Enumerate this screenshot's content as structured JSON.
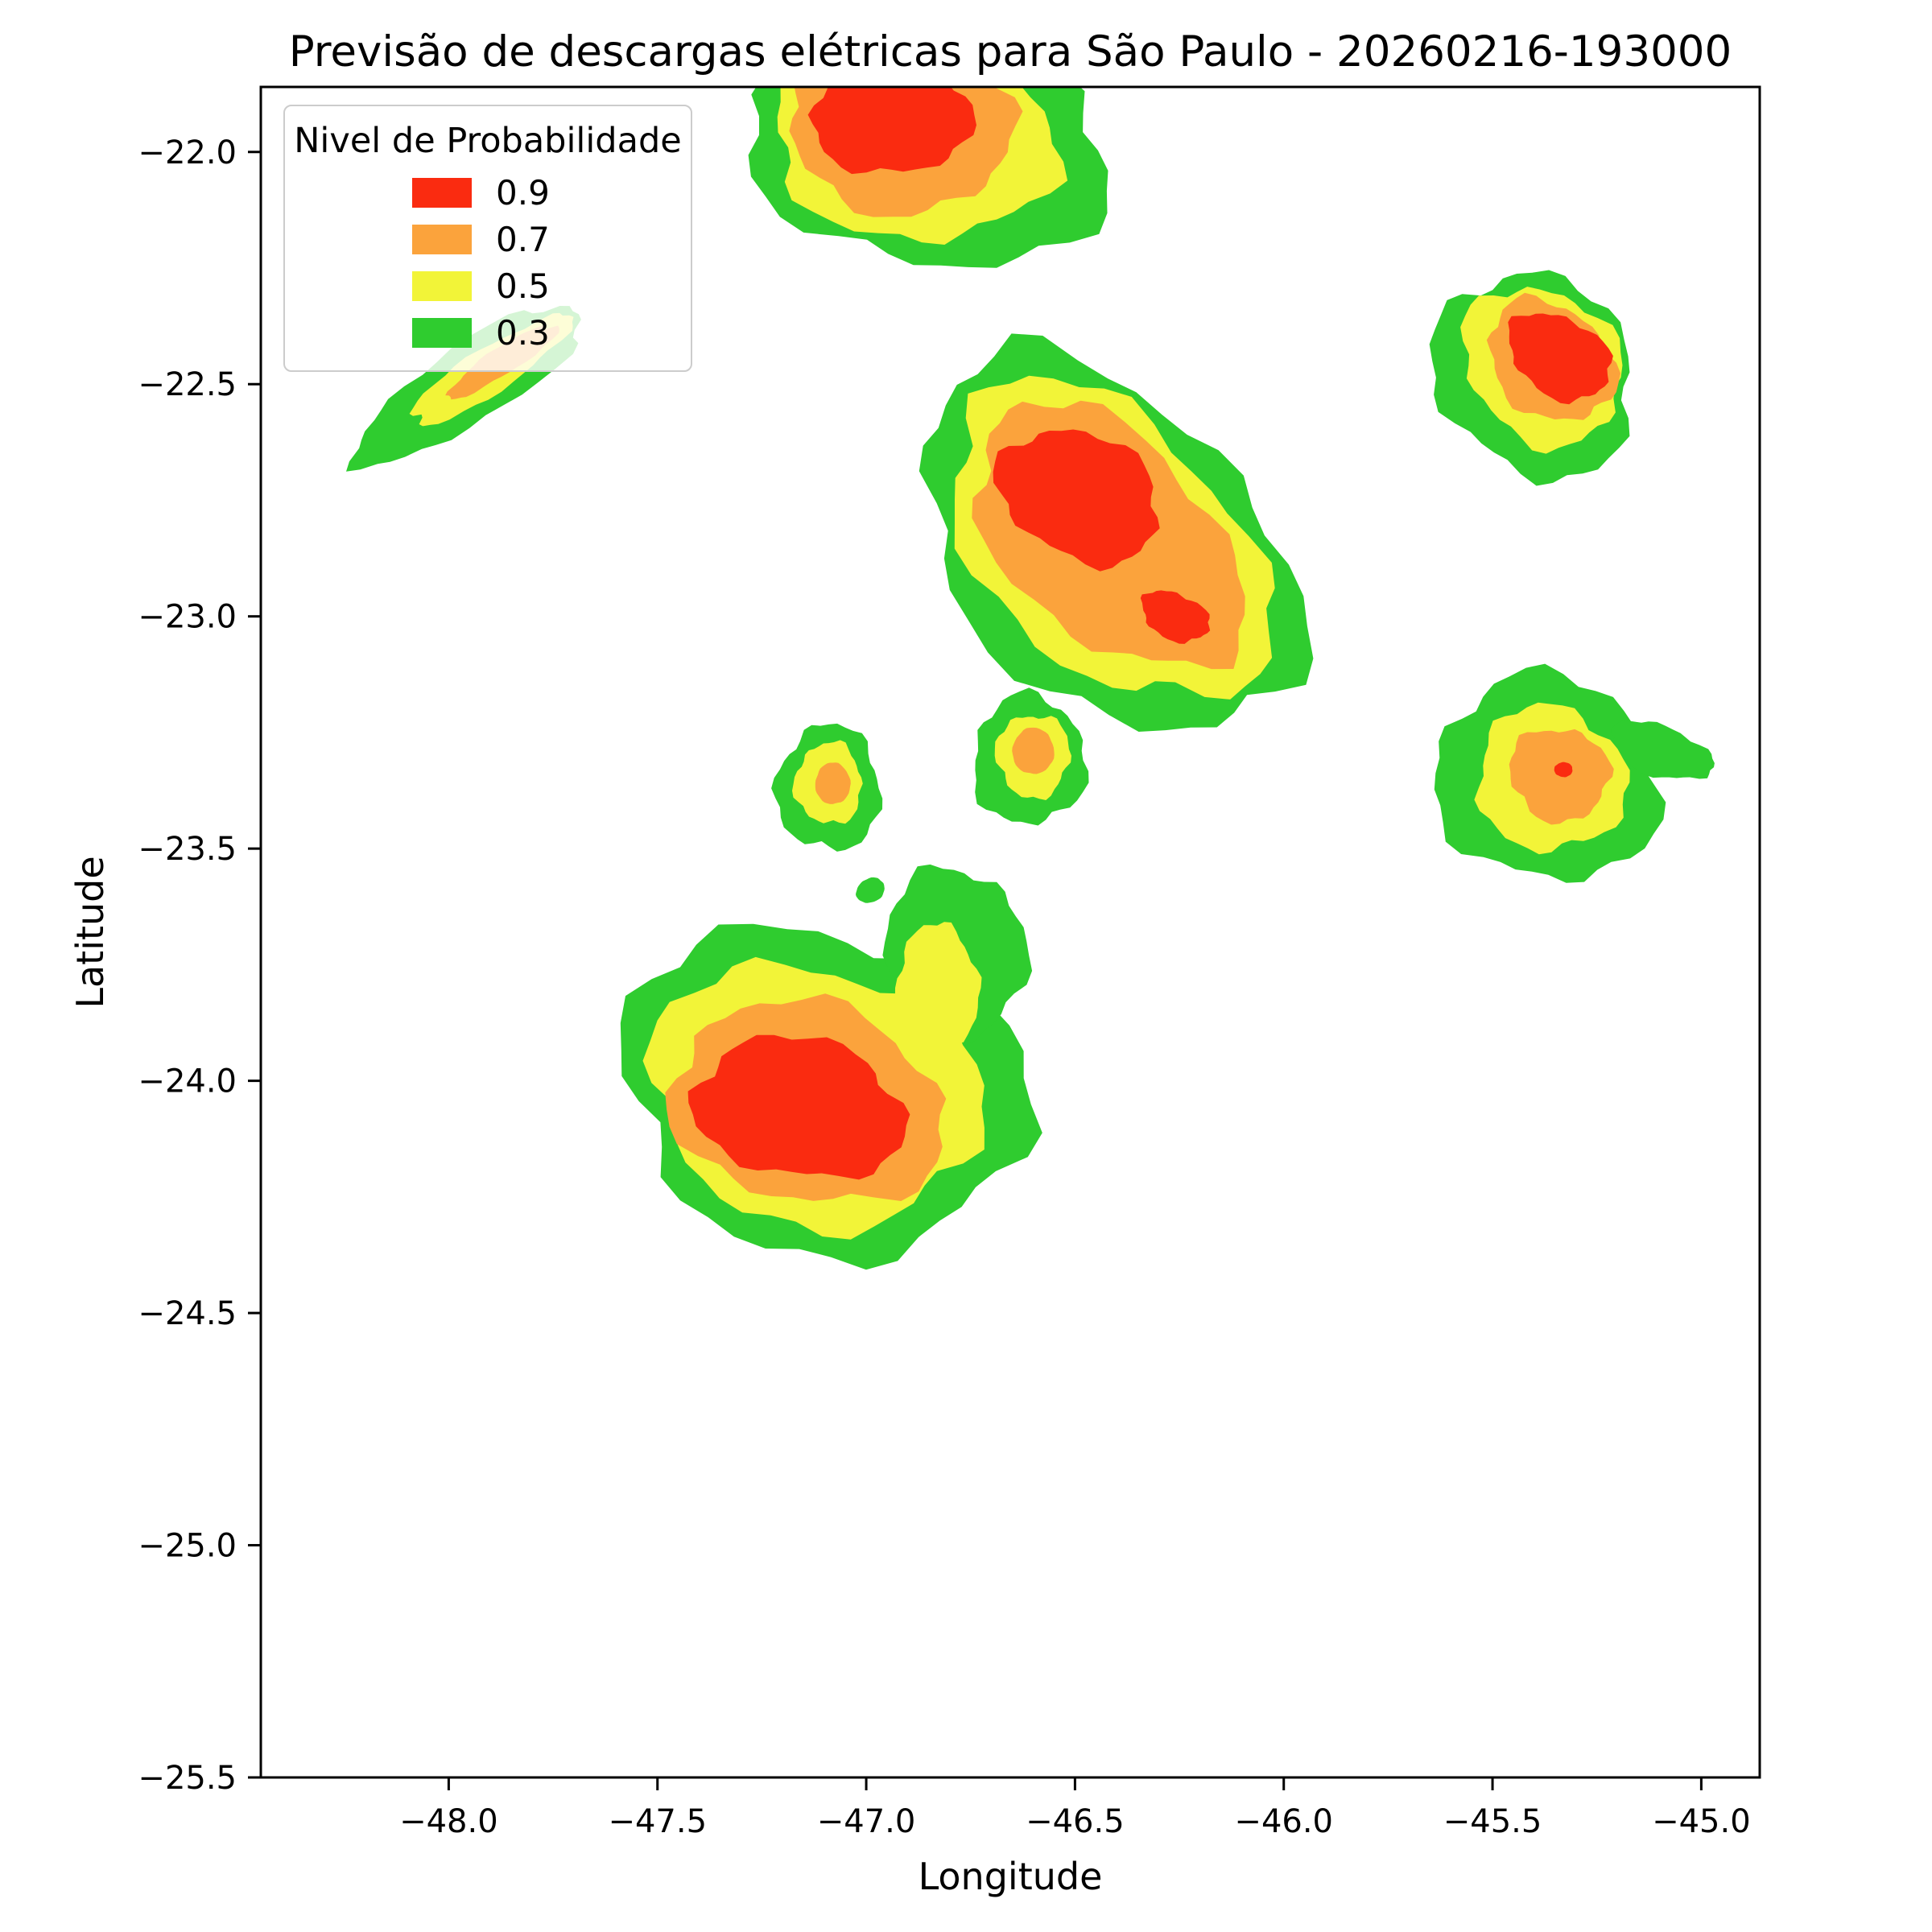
{
  "figure": {
    "title": "Previsão de descargas elétricas para São Paulo - 20260216-193000",
    "xlabel": "Longitude",
    "ylabel": "Latitude"
  },
  "legend": {
    "title": "Nivel de Probabilidade",
    "entries": [
      {
        "label": "0.9",
        "color": "#fa2b10"
      },
      {
        "label": "0.7",
        "color": "#fba33c"
      },
      {
        "label": "0.5",
        "color": "#f2f438"
      },
      {
        "label": "0.3",
        "color": "#2fcc2f"
      }
    ]
  },
  "chart_data": {
    "type": "heatmap",
    "subtype": "filled-contour-probability-map",
    "title": "Previsão de descargas elétricas para São Paulo - 20260216-193000",
    "xlabel": "Longitude",
    "ylabel": "Latitude",
    "xlim": [
      -48.45,
      -44.86
    ],
    "ylim": [
      -25.5,
      -21.86
    ],
    "grid": false,
    "legend_position": "upper left",
    "xticks": [
      -48.0,
      -47.5,
      -47.0,
      -46.5,
      -46.0,
      -45.5,
      -45.0
    ],
    "xtick_labels": [
      "−48.0",
      "−47.5",
      "−47.0",
      "−46.5",
      "−46.0",
      "−45.5",
      "−45.0"
    ],
    "yticks": [
      -22.0,
      -22.5,
      -23.0,
      -23.5,
      -24.0,
      -24.5,
      -25.0,
      -25.5
    ],
    "ytick_labels": [
      "−22.0",
      "−22.5",
      "−23.0",
      "−23.5",
      "−24.0",
      "−24.5",
      "−25.0",
      "−25.5"
    ],
    "levels": [
      {
        "value": 0.9,
        "color": "#fa2b10"
      },
      {
        "value": 0.7,
        "color": "#fba33c"
      },
      {
        "value": 0.5,
        "color": "#f2f438"
      },
      {
        "value": 0.3,
        "color": "#2fcc2f"
      }
    ],
    "blobs": [
      {
        "name": "north-cell",
        "rings": [
          {
            "level": 0.3,
            "cx": -46.85,
            "cy": -21.98,
            "rx": 0.43,
            "ry": 0.27,
            "angle": -8
          },
          {
            "level": 0.5,
            "cx": -46.89,
            "cy": -21.97,
            "rx": 0.34,
            "ry": 0.22,
            "angle": -8
          },
          {
            "level": 0.7,
            "cx": -46.92,
            "cy": -21.95,
            "rx": 0.27,
            "ry": 0.18,
            "angle": -5
          },
          {
            "level": 0.9,
            "cx": -46.94,
            "cy": -21.92,
            "rx": 0.19,
            "ry": 0.13,
            "angle": 0
          }
        ]
      },
      {
        "name": "northwest-streak",
        "rings": [
          {
            "level": 0.3,
            "cx": -47.95,
            "cy": -22.5,
            "rx": 0.31,
            "ry": 0.085,
            "angle": 30
          },
          {
            "level": 0.5,
            "cx": -47.9,
            "cy": -22.47,
            "rx": 0.22,
            "ry": 0.05,
            "angle": 30
          },
          {
            "level": 0.7,
            "cx": -47.87,
            "cy": -22.45,
            "rx": 0.15,
            "ry": 0.03,
            "angle": 30
          }
        ]
      },
      {
        "name": "central-cluster",
        "rings": [
          {
            "level": 0.3,
            "cx": -46.42,
            "cy": -22.85,
            "rx": 0.51,
            "ry": 0.33,
            "angle": -38
          },
          {
            "level": 0.5,
            "cx": -46.42,
            "cy": -22.84,
            "rx": 0.44,
            "ry": 0.27,
            "angle": -38
          },
          {
            "level": 0.7,
            "cx": -46.42,
            "cy": -22.83,
            "rx": 0.37,
            "ry": 0.22,
            "angle": -38
          },
          {
            "level": 0.9,
            "cx": -46.49,
            "cy": -22.74,
            "rx": 0.2,
            "ry": 0.135,
            "angle": -20
          },
          {
            "level": 0.9,
            "cx": -46.26,
            "cy": -23.0,
            "rx": 0.085,
            "ry": 0.05,
            "angle": -20
          }
        ]
      },
      {
        "name": "northeast-cell",
        "rings": [
          {
            "level": 0.3,
            "cx": -45.4,
            "cy": -22.48,
            "rx": 0.25,
            "ry": 0.21,
            "angle": -30
          },
          {
            "level": 0.5,
            "cx": -45.38,
            "cy": -22.46,
            "rx": 0.2,
            "ry": 0.16,
            "angle": -30
          },
          {
            "level": 0.7,
            "cx": -45.36,
            "cy": -22.45,
            "rx": 0.16,
            "ry": 0.12,
            "angle": -30
          },
          {
            "level": 0.9,
            "cx": -45.34,
            "cy": -22.44,
            "rx": 0.13,
            "ry": 0.085,
            "angle": -25
          }
        ]
      },
      {
        "name": "small-cell-west",
        "rings": [
          {
            "level": 0.3,
            "cx": -47.09,
            "cy": -23.37,
            "rx": 0.125,
            "ry": 0.135,
            "angle": 0
          },
          {
            "level": 0.5,
            "cx": -47.09,
            "cy": -23.36,
            "rx": 0.08,
            "ry": 0.088,
            "angle": 0
          },
          {
            "level": 0.7,
            "cx": -47.08,
            "cy": -23.36,
            "rx": 0.042,
            "ry": 0.045,
            "angle": 0
          }
        ]
      },
      {
        "name": "small-cell-center",
        "rings": [
          {
            "level": 0.3,
            "cx": -46.61,
            "cy": -23.31,
            "rx": 0.135,
            "ry": 0.14,
            "angle": 0
          },
          {
            "level": 0.5,
            "cx": -46.6,
            "cy": -23.3,
            "rx": 0.088,
            "ry": 0.09,
            "angle": 0
          },
          {
            "level": 0.7,
            "cx": -46.6,
            "cy": -23.29,
            "rx": 0.05,
            "ry": 0.05,
            "angle": 0
          }
        ]
      },
      {
        "name": "east-cell",
        "rings": [
          {
            "level": 0.3,
            "cx": -45.37,
            "cy": -23.35,
            "rx": 0.27,
            "ry": 0.22,
            "angle": -10
          },
          {
            "level": 0.3,
            "cx": -45.1,
            "cy": -23.29,
            "rx": 0.13,
            "ry": 0.055,
            "angle": -15
          },
          {
            "level": 0.5,
            "cx": -45.36,
            "cy": -23.35,
            "rx": 0.18,
            "ry": 0.155,
            "angle": -10
          },
          {
            "level": 0.7,
            "cx": -45.34,
            "cy": -23.34,
            "rx": 0.12,
            "ry": 0.1,
            "angle": -10
          },
          {
            "level": 0.9,
            "cx": -45.33,
            "cy": -23.33,
            "rx": 0.022,
            "ry": 0.016,
            "angle": 0
          }
        ]
      },
      {
        "name": "southwest-cluster",
        "rings": [
          {
            "level": 0.3,
            "cx": -47.1,
            "cy": -24.02,
            "rx": 0.49,
            "ry": 0.35,
            "angle": -10
          },
          {
            "level": 0.3,
            "cx": -46.79,
            "cy": -23.73,
            "rx": 0.17,
            "ry": 0.19,
            "angle": 0
          },
          {
            "level": 0.3,
            "cx": -46.99,
            "cy": -23.59,
            "rx": 0.035,
            "ry": 0.026,
            "angle": 20
          },
          {
            "level": 0.5,
            "cx": -47.12,
            "cy": -24.03,
            "rx": 0.4,
            "ry": 0.28,
            "angle": -10
          },
          {
            "level": 0.5,
            "cx": -46.83,
            "cy": -23.8,
            "rx": 0.1,
            "ry": 0.135,
            "angle": 0
          },
          {
            "level": 0.7,
            "cx": -47.14,
            "cy": -24.05,
            "rx": 0.33,
            "ry": 0.215,
            "angle": -10
          },
          {
            "level": 0.9,
            "cx": -47.16,
            "cy": -24.06,
            "rx": 0.255,
            "ry": 0.15,
            "angle": -8
          }
        ]
      }
    ]
  }
}
